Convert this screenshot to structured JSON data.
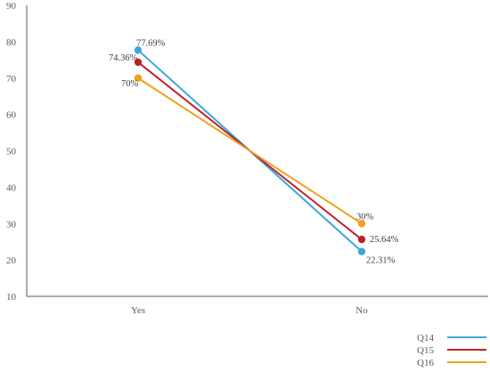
{
  "chart_data": {
    "type": "line",
    "title": "",
    "xlabel": "",
    "ylabel": "",
    "categories": [
      "Yes",
      "No"
    ],
    "ylim": [
      10,
      90
    ],
    "yticks": [
      10,
      20,
      30,
      40,
      50,
      60,
      70,
      80,
      90
    ],
    "grid": false,
    "legend_position": "bottom-right",
    "series": [
      {
        "name": "Q14",
        "values": [
          77.69,
          22.31
        ],
        "labels": [
          "77.69%",
          "22.31%"
        ],
        "color": "#3aa6dd"
      },
      {
        "name": "Q15",
        "values": [
          74.36,
          25.64
        ],
        "labels": [
          "74.36%",
          "25.64%"
        ],
        "color": "#c0202a"
      },
      {
        "name": "Q16",
        "values": [
          70,
          30
        ],
        "labels": [
          "70%",
          "30%"
        ],
        "color": "#f0a01e"
      }
    ]
  }
}
